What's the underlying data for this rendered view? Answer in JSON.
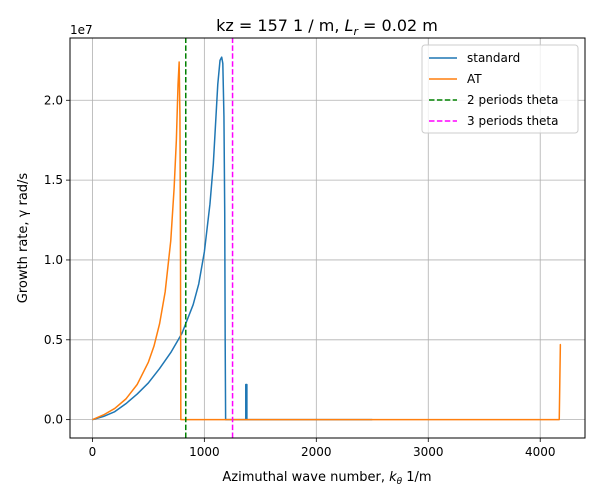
{
  "chart_data": {
    "type": "line",
    "title_prefix": "kz =  157 1 / m, ",
    "title_sym": "L",
    "title_sub": "r",
    "title_suffix": " = 0.02 m",
    "xlabel_prefix": "Azimuthal wave number, ",
    "xlabel_sym": "k",
    "xlabel_sub": "θ",
    "xlabel_suffix": " 1/m",
    "ylabel": "Growth rate, γ rad/s",
    "y_offset_label": "1e7",
    "xlim": [
      -200,
      4400
    ],
    "ylim": [
      -1150000,
      23900000
    ],
    "xticks": [
      0,
      1000,
      2000,
      3000,
      4000
    ],
    "xtick_labels": [
      "0",
      "1000",
      "2000",
      "3000",
      "4000"
    ],
    "yticks": [
      0,
      5000000,
      10000000,
      15000000,
      20000000
    ],
    "ytick_labels": [
      "0.0",
      "0.5",
      "1.0",
      "1.5",
      "2.0"
    ],
    "grid": true,
    "legend_position": "top-right",
    "series": [
      {
        "name": "standard",
        "color": "#1f77b4",
        "style": "solid",
        "x": [
          0,
          100,
          200,
          300,
          400,
          500,
          600,
          700,
          800,
          900,
          950,
          1000,
          1050,
          1080,
          1100,
          1120,
          1140,
          1155,
          1165,
          1175,
          1182,
          1186,
          1190,
          1200,
          1300,
          1370,
          1370,
          1380,
          1380,
          1390,
          2500
        ],
        "y": [
          0,
          200000,
          500000,
          1000000,
          1600000,
          2300000,
          3200000,
          4200000,
          5400000,
          7200000,
          8500000,
          10500000,
          13500000,
          16000000,
          18500000,
          21000000,
          22500000,
          22700000,
          22300000,
          19000000,
          13000000,
          5000000,
          0,
          0,
          0,
          0,
          2200000,
          2200000,
          0,
          0,
          0
        ]
      },
      {
        "name": "AT",
        "color": "#ff7f0e",
        "style": "solid",
        "x": [
          0,
          100,
          200,
          300,
          400,
          500,
          550,
          600,
          650,
          700,
          730,
          750,
          765,
          775,
          782,
          787,
          790,
          800,
          2000,
          3000,
          4170,
          4180,
          4185
        ],
        "y": [
          0,
          300000,
          700000,
          1300000,
          2200000,
          3600000,
          4600000,
          6000000,
          8000000,
          11200000,
          14500000,
          17500000,
          21000000,
          22400000,
          19000000,
          10000000,
          0,
          0,
          0,
          0,
          0,
          4700000,
          4700000
        ]
      },
      {
        "name": "2 periods theta",
        "color": "#008000",
        "style": "dashed",
        "x": [
          834,
          834
        ],
        "y": [
          -1150000,
          23900000
        ]
      },
      {
        "name": "3 periods theta",
        "color": "#ff00ff",
        "style": "dashed",
        "x": [
          1252,
          1252
        ],
        "y": [
          -1150000,
          23900000
        ]
      }
    ]
  }
}
